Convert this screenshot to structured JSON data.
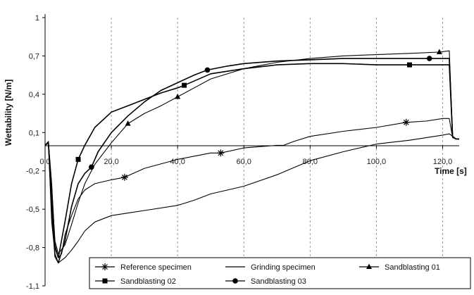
{
  "chart_data": {
    "type": "line",
    "xlabel": "Time [s]",
    "ylabel": "Wettability [N/m]",
    "xlim": [
      0,
      125
    ],
    "ylim": [
      -1.1,
      1.0
    ],
    "x_ticks": [
      0,
      20,
      40,
      60,
      80,
      100,
      120
    ],
    "x_tick_labels": [
      "0,0",
      "20,0",
      "40,0",
      "60,0",
      "80,0",
      "100,0",
      "120,0"
    ],
    "y_ticks": [
      1.0,
      0.7,
      0.4,
      0.1,
      -0.2,
      -0.5,
      -0.8,
      -1.1
    ],
    "y_tick_labels": [
      "1",
      "0,7",
      "0,4",
      "0,1",
      "-0,2",
      "-0,5",
      "-0,8",
      "-1,1"
    ],
    "grid": "vertical-dashed",
    "legend": "bottom-right",
    "series": [
      {
        "name": "Reference specimen",
        "marker": "star",
        "x": [
          0,
          1,
          2,
          3,
          4,
          5,
          6,
          8,
          10,
          12,
          15,
          20,
          24,
          30,
          40,
          50,
          53,
          60,
          65,
          70,
          72,
          75,
          80,
          90,
          100,
          109,
          115,
          120,
          122,
          123,
          124,
          125
        ],
        "y": [
          0.0,
          0.03,
          -0.3,
          -0.78,
          -0.88,
          -0.85,
          -0.7,
          -0.55,
          -0.42,
          -0.35,
          -0.3,
          -0.27,
          -0.25,
          -0.18,
          -0.11,
          -0.06,
          -0.06,
          -0.02,
          -0.01,
          0.0,
          0.0,
          0.03,
          0.07,
          0.11,
          0.14,
          0.18,
          0.19,
          0.21,
          0.21,
          0.06,
          0.05,
          0.05
        ],
        "marker_x": [
          24,
          53,
          109
        ]
      },
      {
        "name": "Grinding specimen",
        "marker": "none",
        "x": [
          0,
          1,
          2,
          3,
          4,
          6,
          8,
          10,
          12,
          15,
          20,
          25,
          30,
          40,
          45,
          50,
          60,
          70,
          80,
          90,
          100,
          110,
          120,
          122,
          123,
          124,
          125
        ],
        "y": [
          0.0,
          0.02,
          -0.6,
          -0.85,
          -0.92,
          -0.88,
          -0.82,
          -0.75,
          -0.67,
          -0.6,
          -0.55,
          -0.53,
          -0.51,
          -0.47,
          -0.43,
          -0.38,
          -0.32,
          -0.23,
          -0.12,
          -0.05,
          0.01,
          0.04,
          0.08,
          0.09,
          0.07,
          0.05,
          0.05
        ]
      },
      {
        "name": "Sandblasting 01",
        "marker": "triangle",
        "x": [
          0,
          1,
          2,
          3,
          4,
          6,
          8,
          10,
          12,
          15,
          20,
          25,
          30,
          35,
          40,
          45,
          50,
          60,
          70,
          80,
          90,
          100,
          110,
          119,
          122,
          123,
          124,
          125
        ],
        "y": [
          0.0,
          0.03,
          -0.35,
          -0.75,
          -0.85,
          -0.78,
          -0.62,
          -0.45,
          -0.3,
          -0.15,
          0.02,
          0.17,
          0.25,
          0.31,
          0.38,
          0.45,
          0.52,
          0.6,
          0.65,
          0.68,
          0.7,
          0.71,
          0.72,
          0.73,
          0.74,
          0.07,
          0.05,
          0.05
        ],
        "marker_x": [
          25,
          40,
          119
        ]
      },
      {
        "name": "Sandblasting 02",
        "marker": "square",
        "x": [
          0,
          1,
          2,
          3,
          4,
          6,
          8,
          10,
          12,
          15,
          20,
          25,
          30,
          35,
          40,
          42,
          50,
          60,
          70,
          80,
          90,
          100,
          110,
          120,
          122,
          123,
          124,
          125
        ],
        "y": [
          0.0,
          0.02,
          -0.4,
          -0.8,
          -0.88,
          -0.6,
          -0.3,
          -0.11,
          0.0,
          0.14,
          0.26,
          0.31,
          0.36,
          0.41,
          0.45,
          0.47,
          0.56,
          0.6,
          0.63,
          0.64,
          0.64,
          0.63,
          0.63,
          0.63,
          0.63,
          0.07,
          0.05,
          0.05
        ],
        "marker_x": [
          10,
          42,
          110
        ]
      },
      {
        "name": "Sandblasting 03",
        "marker": "circle",
        "x": [
          0,
          1,
          2,
          3,
          4,
          6,
          8,
          10,
          12,
          14,
          16,
          20,
          25,
          30,
          35,
          40,
          45,
          49,
          55,
          60,
          70,
          80,
          90,
          100,
          110,
          116,
          122,
          123,
          124,
          125
        ],
        "y": [
          0.0,
          0.02,
          -0.5,
          -0.87,
          -0.92,
          -0.75,
          -0.48,
          -0.3,
          -0.22,
          -0.17,
          -0.05,
          0.1,
          0.23,
          0.34,
          0.43,
          0.49,
          0.55,
          0.59,
          0.62,
          0.64,
          0.66,
          0.67,
          0.68,
          0.68,
          0.68,
          0.68,
          0.68,
          0.07,
          0.05,
          0.05
        ],
        "marker_x": [
          14,
          49,
          116
        ]
      }
    ]
  }
}
